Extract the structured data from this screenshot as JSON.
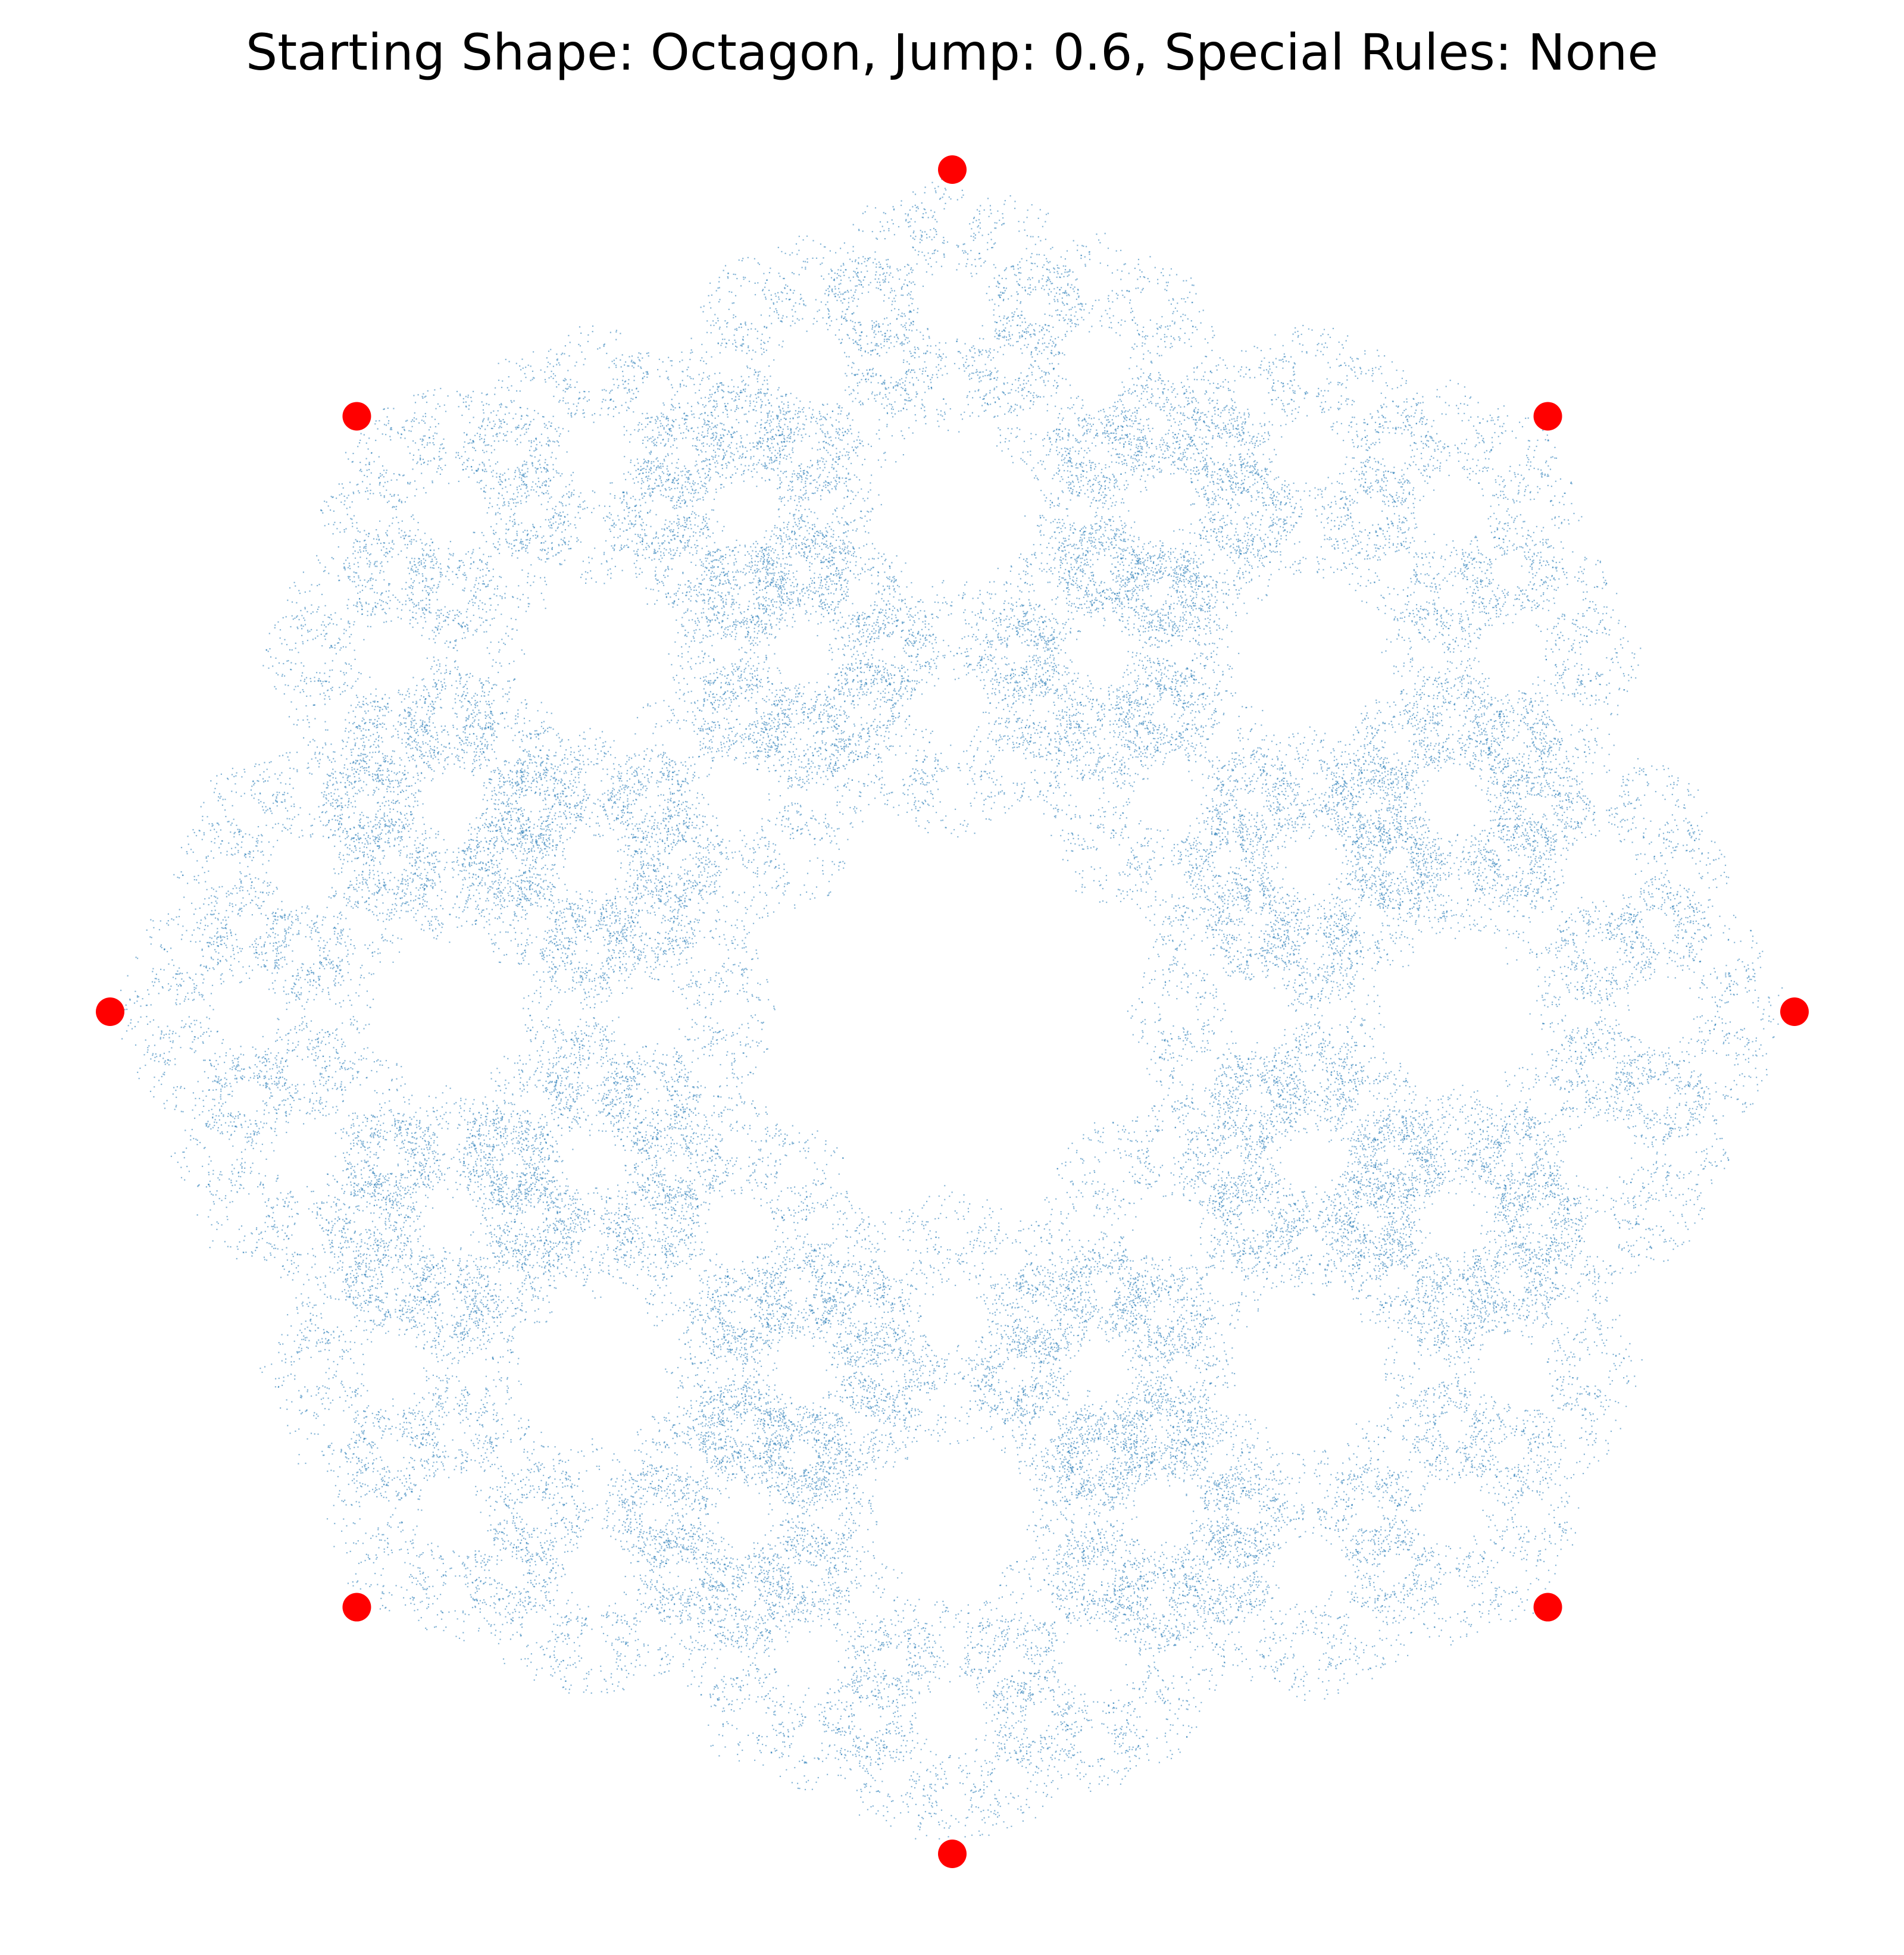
{
  "chart_data": {
    "type": "scatter",
    "title": "Starting Shape: Octagon, Jump: 0.6, Special Rules: None",
    "xlabel": "",
    "ylabel": "",
    "axes_visible": false,
    "grid": false,
    "legend": "none",
    "shape": "octagon",
    "jump": 0.6,
    "special_rules": "None",
    "xlim": [
      -1.05,
      1.05
    ],
    "ylim": [
      -1.05,
      1.05
    ],
    "series": [
      {
        "kind": "vertices",
        "color": "#ff0000",
        "points": [
          {
            "x": 0.0,
            "y": 1.0
          },
          {
            "x": 0.7071,
            "y": 0.7071
          },
          {
            "x": 1.0,
            "y": 0.0
          },
          {
            "x": 0.7071,
            "y": -0.7071
          },
          {
            "x": 0.0,
            "y": -1.0
          },
          {
            "x": -0.7071,
            "y": -0.7071
          },
          {
            "x": -1.0,
            "y": 0.0
          },
          {
            "x": -0.7071,
            "y": 0.7071
          }
        ]
      },
      {
        "kind": "chaos-game-points",
        "color": "#1f77b4",
        "iterations": 60000,
        "rule": "move a fraction 'jump' of the distance toward a randomly chosen vertex"
      }
    ]
  }
}
